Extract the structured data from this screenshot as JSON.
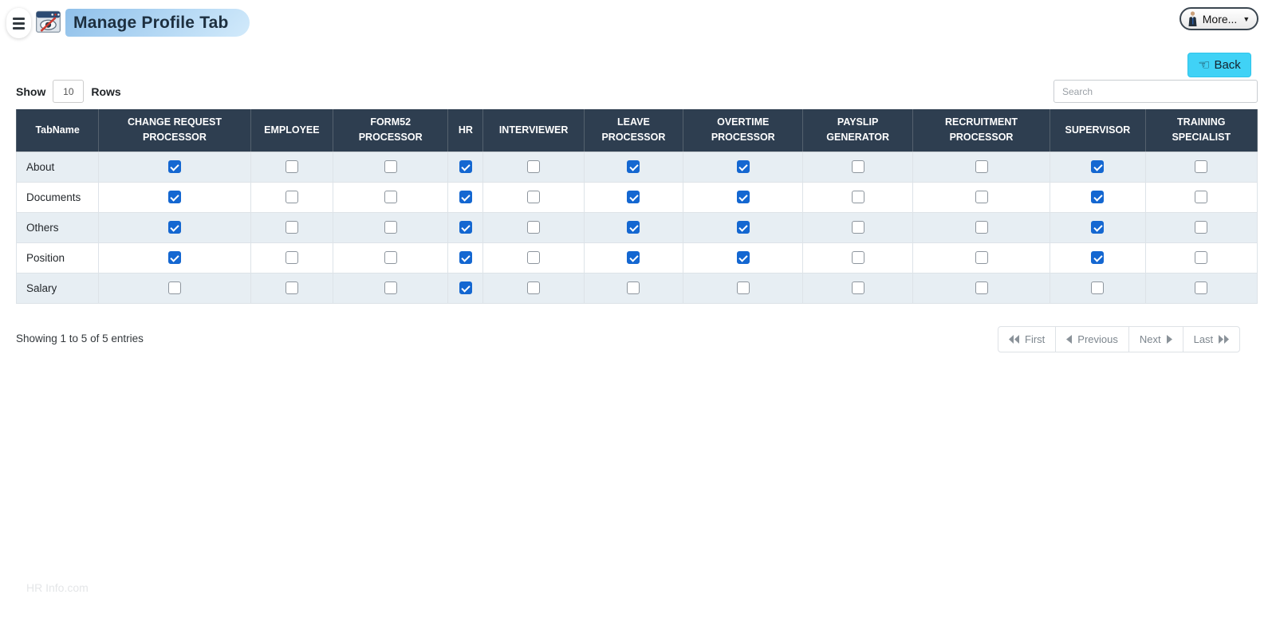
{
  "topbar": {
    "title": "Manage Profile Tab",
    "more_label": "More...",
    "back_label": "Back"
  },
  "icons": {
    "caret_down": "▼",
    "back_hand": "☜"
  },
  "list_controls": {
    "show_label": "Show",
    "rows_per_page": "10",
    "rows_label": "Rows",
    "search_placeholder": "Search"
  },
  "table": {
    "columns": [
      "TabName",
      "CHANGE REQUEST PROCESSOR",
      "EMPLOYEE",
      "FORM52 PROCESSOR",
      "HR",
      "INTERVIEWER",
      "LEAVE PROCESSOR",
      "OVERTIME PROCESSOR",
      "PAYSLIP GENERATOR",
      "RECRUITMENT PROCESSOR",
      "SUPERVISOR",
      "TRAINING SPECIALIST"
    ],
    "rows": [
      {
        "tab_name": "About",
        "checks": [
          true,
          false,
          false,
          true,
          false,
          true,
          true,
          false,
          false,
          true,
          false
        ]
      },
      {
        "tab_name": "Documents",
        "checks": [
          true,
          false,
          false,
          true,
          false,
          true,
          true,
          false,
          false,
          true,
          false
        ]
      },
      {
        "tab_name": "Others",
        "checks": [
          true,
          false,
          false,
          true,
          false,
          true,
          true,
          false,
          false,
          true,
          false
        ]
      },
      {
        "tab_name": "Position",
        "checks": [
          true,
          false,
          false,
          true,
          false,
          true,
          true,
          false,
          false,
          true,
          false
        ]
      },
      {
        "tab_name": "Salary",
        "checks": [
          false,
          false,
          false,
          true,
          false,
          false,
          false,
          false,
          false,
          false,
          false
        ]
      }
    ]
  },
  "pagination": {
    "summary": "Showing 1 to 5 of 5 entries",
    "first_label": "First",
    "previous_label": "Previous",
    "next_label": "Next",
    "last_label": "Last"
  },
  "footer": {
    "brand": "HR Info.com"
  },
  "colors": {
    "header_bg": "#2e3e50",
    "row_stripe": "#e7eef3",
    "checkbox_checked": "#1467d1",
    "back_button": "#40d2f6",
    "title_pill": "#9ecdf1"
  }
}
